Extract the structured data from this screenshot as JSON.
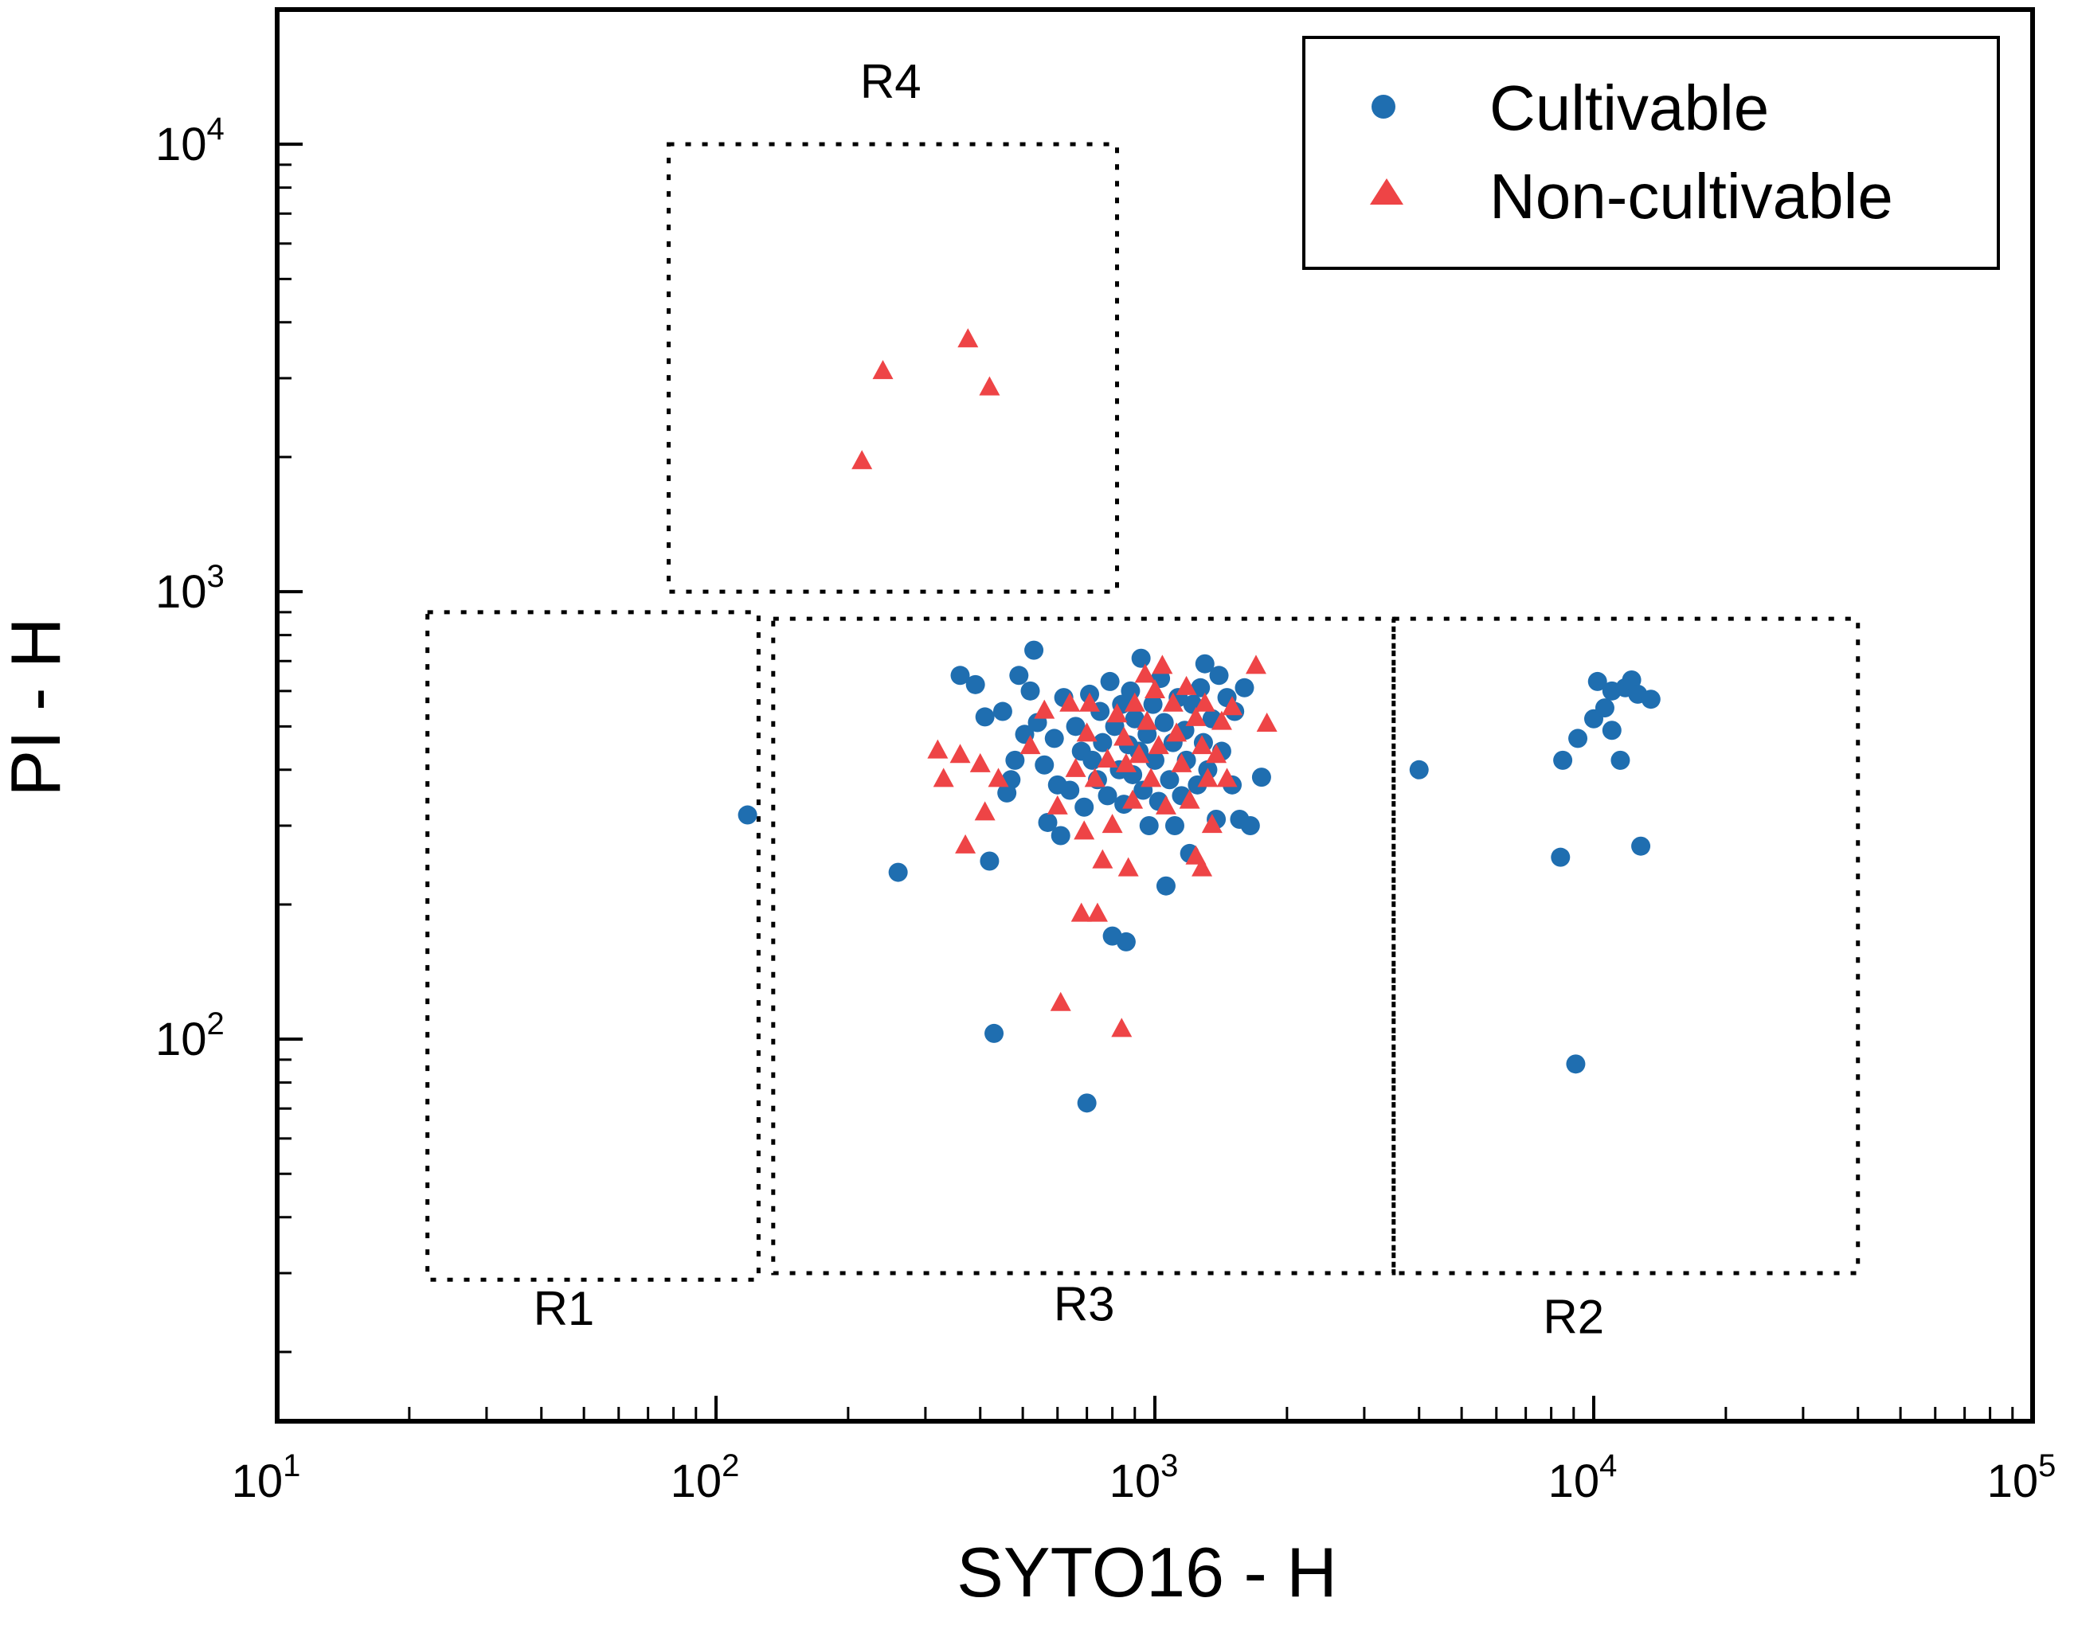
{
  "chart_data": {
    "type": "scatter",
    "title": "",
    "xlabel": "SYTO16 - H",
    "ylabel": "PI - H",
    "xscale": "log",
    "yscale": "log",
    "xlim": [
      10,
      100000
    ],
    "ylim": [
      14,
      20000
    ],
    "x_ticks": [
      {
        "value": 10,
        "base": "10",
        "exp": "1"
      },
      {
        "value": 100,
        "base": "10",
        "exp": "2"
      },
      {
        "value": 1000,
        "base": "10",
        "exp": "3"
      },
      {
        "value": 10000,
        "base": "10",
        "exp": "4"
      },
      {
        "value": 100000,
        "base": "10",
        "exp": "5"
      }
    ],
    "y_ticks": [
      {
        "value": 100,
        "base": "10",
        "exp": "2"
      },
      {
        "value": 1000,
        "base": "10",
        "exp": "3"
      },
      {
        "value": 10000,
        "base": "10",
        "exp": "4"
      }
    ],
    "grid": false,
    "legend_position": "top-right",
    "colors": {
      "cultivable": "#1f6eb0",
      "non_cultivable": "#ee4446"
    },
    "regions": [
      {
        "name": "R1",
        "x_range": [
          22,
          125
        ],
        "y_range": [
          29,
          900
        ],
        "label_anchor": [
          45,
          23
        ]
      },
      {
        "name": "R2",
        "x_range": [
          3500,
          40000
        ],
        "y_range": [
          30,
          870
        ],
        "label_anchor": [
          9000,
          22
        ]
      },
      {
        "name": "R3",
        "x_range": [
          135,
          3500
        ],
        "y_range": [
          30,
          870
        ],
        "label_anchor": [
          690,
          23.5
        ]
      },
      {
        "name": "R4",
        "x_range": [
          78,
          820
        ],
        "y_range": [
          1000,
          10000
        ],
        "label_anchor": [
          250,
          12700
        ]
      }
    ],
    "series": [
      {
        "name": "Cultivable",
        "marker": "circle",
        "points": [
          [
            118,
            317
          ],
          [
            260,
            236
          ],
          [
            360,
            650
          ],
          [
            390,
            620
          ],
          [
            410,
            525
          ],
          [
            420,
            250
          ],
          [
            430,
            103
          ],
          [
            450,
            540
          ],
          [
            460,
            355
          ],
          [
            470,
            380
          ],
          [
            480,
            420
          ],
          [
            490,
            650
          ],
          [
            505,
            480
          ],
          [
            520,
            600
          ],
          [
            530,
            740
          ],
          [
            540,
            510
          ],
          [
            560,
            410
          ],
          [
            570,
            305
          ],
          [
            590,
            470
          ],
          [
            600,
            370
          ],
          [
            610,
            285
          ],
          [
            620,
            580
          ],
          [
            640,
            360
          ],
          [
            660,
            500
          ],
          [
            680,
            440
          ],
          [
            690,
            330
          ],
          [
            700,
            72
          ],
          [
            710,
            590
          ],
          [
            720,
            420
          ],
          [
            740,
            380
          ],
          [
            750,
            540
          ],
          [
            760,
            460
          ],
          [
            780,
            350
          ],
          [
            790,
            630
          ],
          [
            800,
            170
          ],
          [
            810,
            500
          ],
          [
            830,
            400
          ],
          [
            840,
            560
          ],
          [
            850,
            335
          ],
          [
            860,
            165
          ],
          [
            870,
            455
          ],
          [
            880,
            600
          ],
          [
            890,
            390
          ],
          [
            900,
            520
          ],
          [
            920,
            440
          ],
          [
            930,
            710
          ],
          [
            940,
            360
          ],
          [
            960,
            480
          ],
          [
            970,
            300
          ],
          [
            990,
            560
          ],
          [
            1000,
            420
          ],
          [
            1020,
            340
          ],
          [
            1030,
            640
          ],
          [
            1050,
            510
          ],
          [
            1060,
            220
          ],
          [
            1080,
            380
          ],
          [
            1100,
            460
          ],
          [
            1110,
            300
          ],
          [
            1130,
            580
          ],
          [
            1150,
            350
          ],
          [
            1170,
            490
          ],
          [
            1180,
            420
          ],
          [
            1200,
            260
          ],
          [
            1220,
            560
          ],
          [
            1250,
            370
          ],
          [
            1270,
            610
          ],
          [
            1290,
            460
          ],
          [
            1300,
            690
          ],
          [
            1320,
            400
          ],
          [
            1350,
            520
          ],
          [
            1380,
            310
          ],
          [
            1400,
            650
          ],
          [
            1420,
            440
          ],
          [
            1460,
            580
          ],
          [
            1500,
            370
          ],
          [
            1520,
            540
          ],
          [
            1560,
            310
          ],
          [
            1600,
            610
          ],
          [
            1650,
            300
          ],
          [
            1750,
            385
          ],
          [
            4000,
            400
          ],
          [
            8500,
            420
          ],
          [
            8400,
            255
          ],
          [
            9100,
            88
          ],
          [
            9200,
            470
          ],
          [
            10000,
            520
          ],
          [
            10200,
            630
          ],
          [
            10600,
            550
          ],
          [
            11000,
            490
          ],
          [
            11000,
            600
          ],
          [
            11500,
            420
          ],
          [
            11800,
            610
          ],
          [
            12200,
            635
          ],
          [
            12600,
            590
          ],
          [
            12800,
            270
          ],
          [
            13500,
            575
          ]
        ]
      },
      {
        "name": "Non-cultivable",
        "marker": "triangle",
        "points": [
          [
            215,
            1950
          ],
          [
            240,
            3100
          ],
          [
            375,
            3650
          ],
          [
            420,
            2850
          ],
          [
            320,
            440
          ],
          [
            330,
            380
          ],
          [
            360,
            430
          ],
          [
            370,
            270
          ],
          [
            400,
            410
          ],
          [
            410,
            320
          ],
          [
            440,
            380
          ],
          [
            520,
            450
          ],
          [
            560,
            540
          ],
          [
            600,
            330
          ],
          [
            610,
            120
          ],
          [
            640,
            560
          ],
          [
            660,
            400
          ],
          [
            680,
            190
          ],
          [
            690,
            290
          ],
          [
            700,
            480
          ],
          [
            710,
            560
          ],
          [
            730,
            380
          ],
          [
            740,
            190
          ],
          [
            760,
            250
          ],
          [
            780,
            420
          ],
          [
            800,
            300
          ],
          [
            820,
            530
          ],
          [
            840,
            105
          ],
          [
            850,
            470
          ],
          [
            860,
            410
          ],
          [
            870,
            240
          ],
          [
            890,
            340
          ],
          [
            900,
            560
          ],
          [
            920,
            430
          ],
          [
            950,
            650
          ],
          [
            960,
            510
          ],
          [
            980,
            380
          ],
          [
            1000,
            600
          ],
          [
            1020,
            450
          ],
          [
            1040,
            680
          ],
          [
            1060,
            330
          ],
          [
            1100,
            560
          ],
          [
            1120,
            480
          ],
          [
            1150,
            410
          ],
          [
            1180,
            610
          ],
          [
            1200,
            340
          ],
          [
            1240,
            520
          ],
          [
            1280,
            450
          ],
          [
            1300,
            560
          ],
          [
            1320,
            380
          ],
          [
            1350,
            300
          ],
          [
            1380,
            430
          ],
          [
            1420,
            510
          ],
          [
            1460,
            380
          ],
          [
            1500,
            550
          ],
          [
            1700,
            680
          ],
          [
            1800,
            505
          ],
          [
            1280,
            240
          ],
          [
            1240,
            255
          ]
        ]
      }
    ]
  }
}
